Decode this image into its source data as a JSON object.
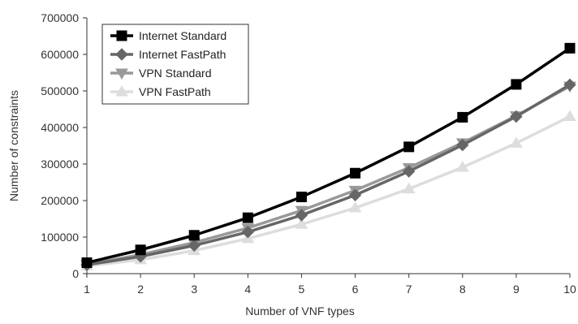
{
  "chart_data": {
    "type": "line",
    "title": "",
    "xlabel": "Number of VNF types",
    "ylabel": "Number of constraints",
    "x": [
      1,
      2,
      3,
      4,
      5,
      6,
      7,
      8,
      9,
      10
    ],
    "xlim": [
      1,
      10
    ],
    "ylim": [
      0,
      700000
    ],
    "yticks": [
      0,
      100000,
      200000,
      300000,
      400000,
      500000,
      600000,
      700000
    ],
    "xticks": [
      1,
      2,
      3,
      4,
      5,
      6,
      7,
      8,
      9,
      10
    ],
    "grid": false,
    "legend_position": "top-left",
    "series": [
      {
        "name": "Internet Standard",
        "color": "#000000",
        "marker": "square",
        "values": [
          30000,
          65000,
          105000,
          153000,
          210000,
          275000,
          347000,
          428000,
          518000,
          617000
        ]
      },
      {
        "name": "Internet FastPath",
        "color": "#666666",
        "marker": "diamond",
        "values": [
          24000,
          47000,
          77000,
          114000,
          160000,
          215000,
          280000,
          352000,
          430000,
          517000
        ]
      },
      {
        "name": "VPN Standard",
        "color": "#999999",
        "marker": "triangle-down",
        "values": [
          25000,
          52000,
          85000,
          125000,
          173000,
          228000,
          290000,
          358000,
          432000,
          513000
        ]
      },
      {
        "name": "VPN FastPath",
        "color": "#dddddd",
        "marker": "triangle-up",
        "values": [
          21000,
          38000,
          63000,
          96000,
          135000,
          180000,
          232000,
          291000,
          357000,
          430000
        ]
      }
    ]
  }
}
